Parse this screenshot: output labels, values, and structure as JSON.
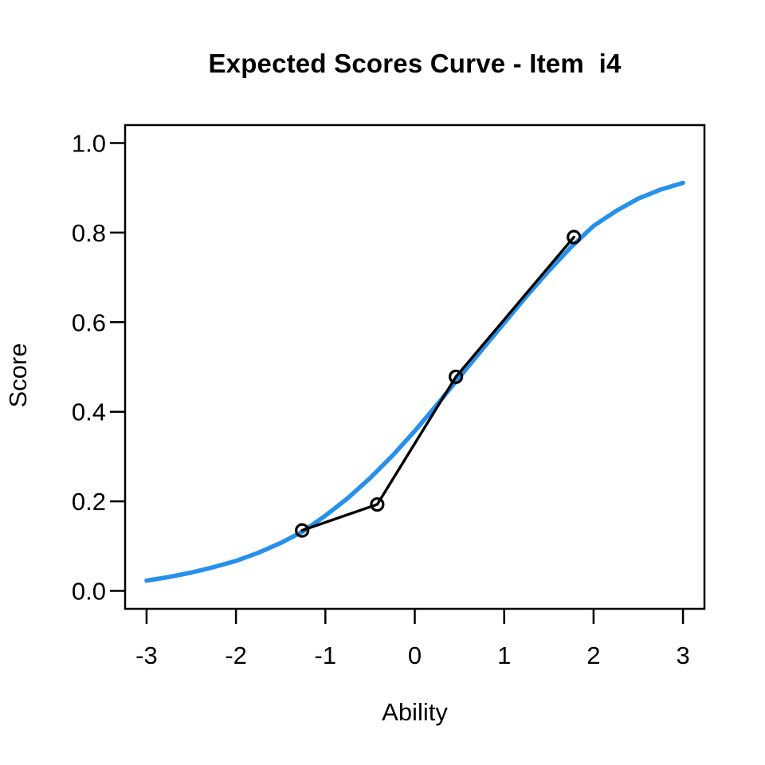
{
  "figure": {
    "title": "Expected Scores Curve - Item  i4",
    "x_axis": {
      "label": "Ability"
    },
    "y_axis": {
      "label": "Score"
    }
  },
  "chart_data": {
    "type": "line",
    "title": "Expected Scores Curve - Item  i4",
    "xlabel": "Ability",
    "ylabel": "Score",
    "xlim": [
      -3,
      3
    ],
    "ylim": [
      0,
      1
    ],
    "grid": false,
    "legend": null,
    "x_tick_values": [
      -3,
      -2,
      -1,
      0,
      1,
      2,
      3
    ],
    "x_tick_labels": [
      "-3",
      "-2",
      "-1",
      "0",
      "1",
      "2",
      "3"
    ],
    "y_tick_values": [
      0,
      0.2,
      0.4,
      0.6,
      0.8,
      1
    ],
    "y_tick_labels": [
      "0.0",
      "0.2",
      "0.4",
      "0.6",
      "0.8",
      "1.0"
    ],
    "series": [
      {
        "name": "expected-score-curve",
        "style": "smooth-line",
        "color": "#2790EA",
        "line_width": 5.5,
        "x": [
          -3,
          -2.75,
          -2.5,
          -2.25,
          -2,
          -1.75,
          -1.5,
          -1.25,
          -1,
          -0.75,
          -0.5,
          -0.25,
          0,
          0.25,
          0.5,
          0.75,
          1,
          1.25,
          1.5,
          1.75,
          2,
          2.25,
          2.5,
          2.75,
          3
        ],
        "y": [
          0.023,
          0.031,
          0.041,
          0.053,
          0.067,
          0.085,
          0.107,
          0.133,
          0.168,
          0.207,
          0.252,
          0.302,
          0.357,
          0.416,
          0.477,
          0.538,
          0.598,
          0.658,
          0.715,
          0.768,
          0.815,
          0.848,
          0.876,
          0.896,
          0.911
        ]
      },
      {
        "name": "observed-scores",
        "style": "line-with-open-circles",
        "color": "#000000",
        "line_width": 3.4,
        "marker": "open-circle",
        "marker_radius": 7.5,
        "x": [
          -1.26,
          -0.42,
          0.46,
          1.78
        ],
        "y": [
          0.135,
          0.193,
          0.478,
          0.79
        ]
      }
    ]
  }
}
